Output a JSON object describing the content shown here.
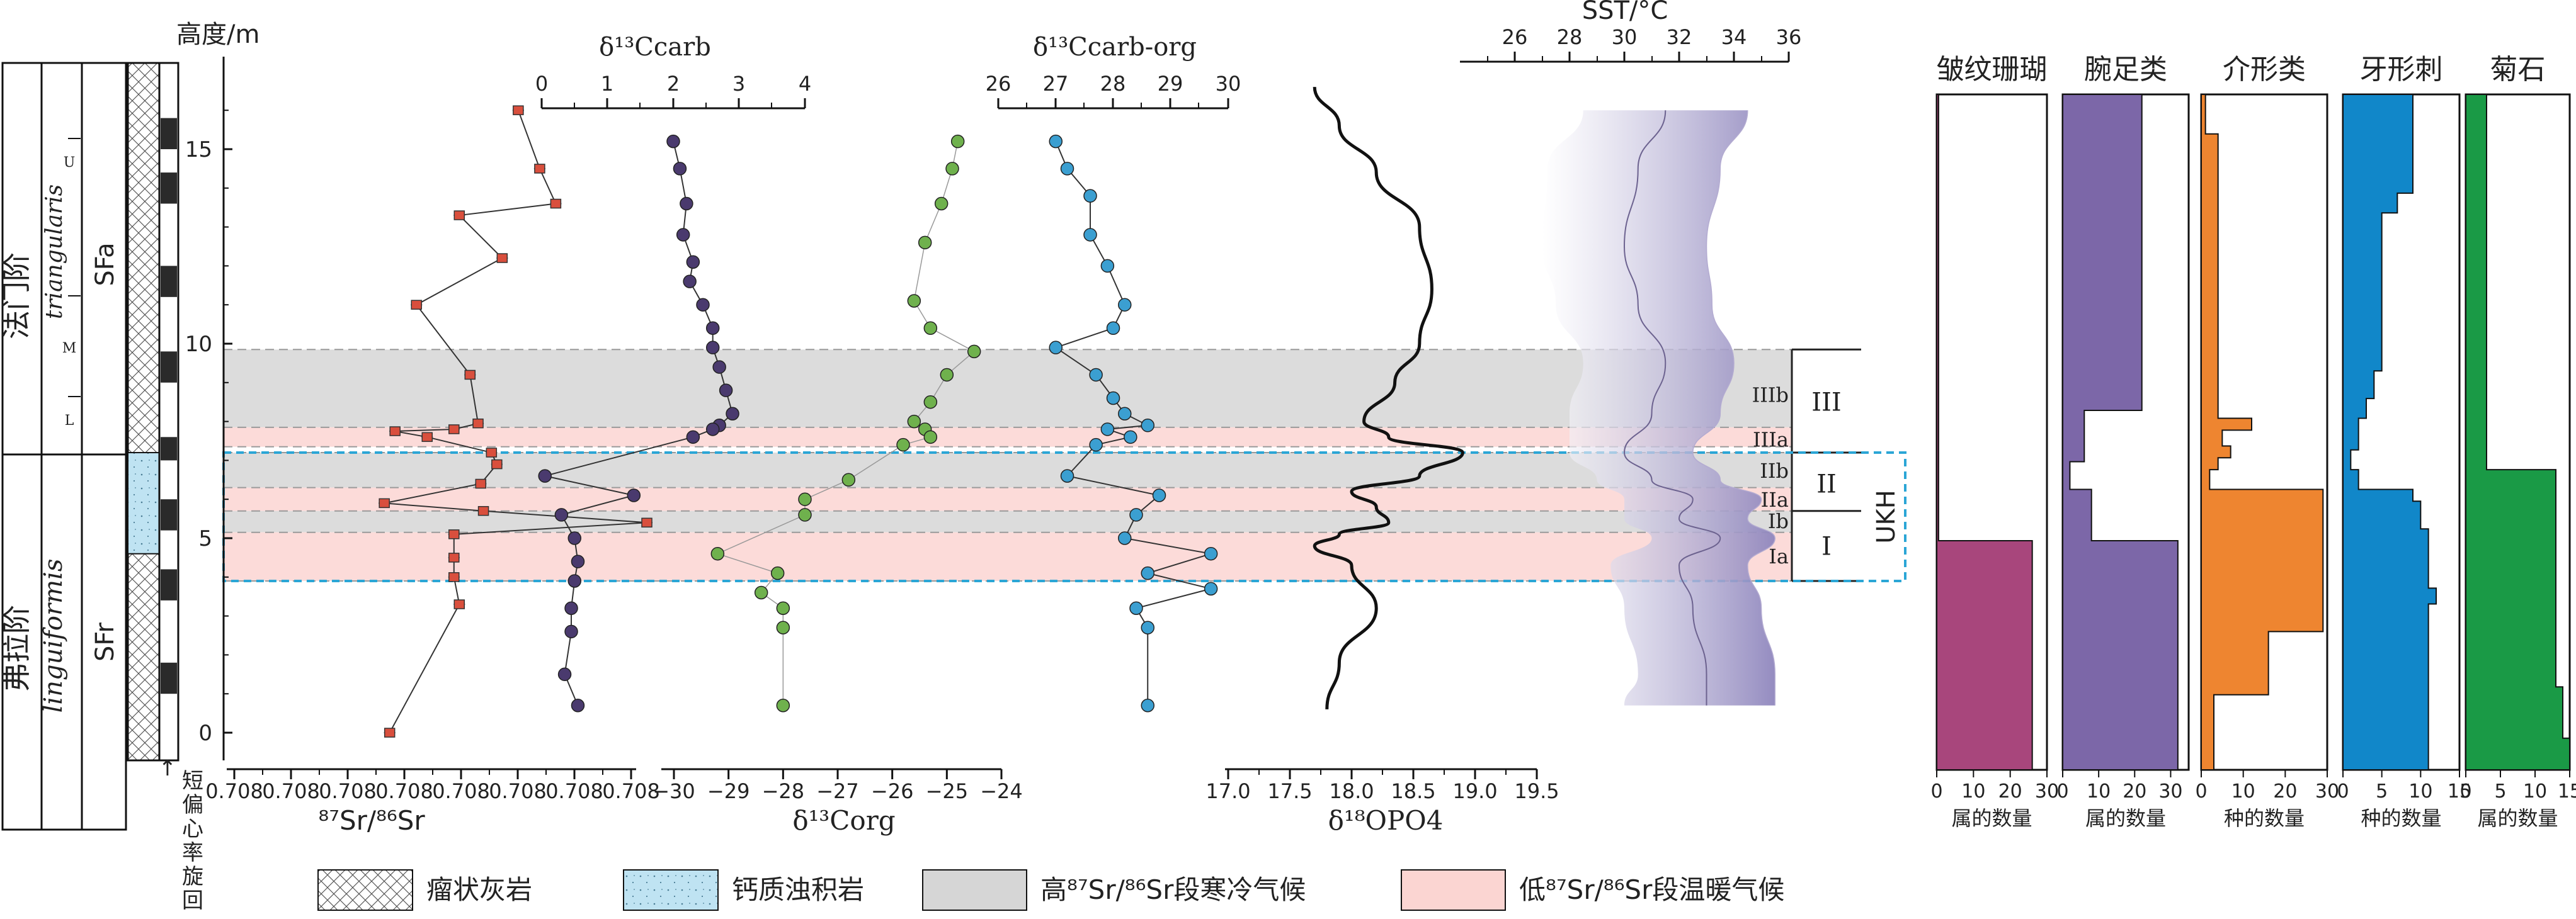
{
  "figure": {
    "height_axis_label": "高度/m",
    "height_ticks": [
      "0",
      "5",
      "10",
      "15"
    ],
    "stages": [
      "法门阶",
      "弗拉阶"
    ],
    "zones": [
      "triangularis",
      "linguiformis"
    ],
    "subzones": [
      "U",
      "M",
      "L"
    ],
    "sequences": [
      "SFa",
      "SFr"
    ],
    "cycle_label": "短偏心率旋回",
    "cycle_arrow": "↑",
    "intervals": [
      "IIIb",
      "IIIa",
      "IIb",
      "IIa",
      "Ib",
      "Ia"
    ],
    "groups": [
      "III",
      "II",
      "I"
    ],
    "ukh_label": "UKH"
  },
  "legend": {
    "items": [
      {
        "key": "nodular",
        "label": "瘤状灰岩"
      },
      {
        "key": "turbidite",
        "label": "钙质浊积岩"
      },
      {
        "key": "cold",
        "label": "高⁸⁷Sr/⁸⁶Sr段寒冷气候"
      },
      {
        "key": "warm",
        "label": "低⁸⁷Sr/⁸⁶Sr段温暖气候"
      }
    ]
  },
  "colors": {
    "sr": "#d94f3d",
    "carb": "#4a3a6e",
    "org": "#6fb14d",
    "carborg": "#3b9fd1",
    "sst_band": "#a89ccb",
    "cold": "#d6d6d6",
    "warm": "#fbd5d2",
    "ukh": "#2ba6d6",
    "coral": "#a8467c",
    "brach": "#7c67a8",
    "ostracod": "#ee8530",
    "conodont": "#1187c9",
    "ammonoid": "#1a9a46"
  },
  "chart_data": [
    {
      "type": "scatter",
      "panel": "sr",
      "xlabel": "⁸⁷Sr/⁸⁶Sr",
      "ylabel": "高度/m",
      "xlim": [
        0.7079,
        0.7082
      ],
      "ylim": [
        -1,
        16.5
      ],
      "x_ticks": [
        "0.708",
        "0.708",
        "0.708",
        "0.708",
        "0.708",
        "0.708",
        "0.708",
        "0.708"
      ],
      "points": [
        {
          "y": 16.0,
          "x": 0.708112
        },
        {
          "y": 14.5,
          "x": 0.708128
        },
        {
          "y": 13.6,
          "x": 0.70814
        },
        {
          "y": 13.3,
          "x": 0.708068
        },
        {
          "y": 12.2,
          "x": 0.7081
        },
        {
          "y": 11.0,
          "x": 0.708036
        },
        {
          "y": 9.2,
          "x": 0.708076
        },
        {
          "y": 7.95,
          "x": 0.708082
        },
        {
          "y": 7.8,
          "x": 0.708064
        },
        {
          "y": 7.75,
          "x": 0.70802
        },
        {
          "y": 7.6,
          "x": 0.708044
        },
        {
          "y": 7.2,
          "x": 0.708092
        },
        {
          "y": 6.9,
          "x": 0.708096
        },
        {
          "y": 6.4,
          "x": 0.708084
        },
        {
          "y": 5.9,
          "x": 0.708012
        },
        {
          "y": 5.7,
          "x": 0.708086
        },
        {
          "y": 5.4,
          "x": 0.708208
        },
        {
          "y": 5.1,
          "x": 0.708064
        },
        {
          "y": 4.5,
          "x": 0.708064
        },
        {
          "y": 4.0,
          "x": 0.708064
        },
        {
          "y": 3.3,
          "x": 0.708068
        },
        {
          "y": 0.0,
          "x": 0.708016
        }
      ]
    },
    {
      "type": "scatter",
      "panel": "d13C_carb",
      "title": "δ¹³Ccarb",
      "xlim": [
        0,
        4
      ],
      "x_ticks": [
        "0",
        "1",
        "2",
        "3",
        "4"
      ],
      "points": [
        {
          "y": 15.2,
          "x": 2.0
        },
        {
          "y": 14.5,
          "x": 2.1
        },
        {
          "y": 13.6,
          "x": 2.2
        },
        {
          "y": 12.8,
          "x": 2.15
        },
        {
          "y": 12.1,
          "x": 2.3
        },
        {
          "y": 11.6,
          "x": 2.25
        },
        {
          "y": 11.0,
          "x": 2.45
        },
        {
          "y": 10.4,
          "x": 2.6
        },
        {
          "y": 9.9,
          "x": 2.6
        },
        {
          "y": 9.4,
          "x": 2.7
        },
        {
          "y": 8.8,
          "x": 2.8
        },
        {
          "y": 8.2,
          "x": 2.9
        },
        {
          "y": 7.9,
          "x": 2.7
        },
        {
          "y": 7.8,
          "x": 2.6
        },
        {
          "y": 7.6,
          "x": 2.3
        },
        {
          "y": 6.6,
          "x": 0.05
        },
        {
          "y": 6.1,
          "x": 1.4
        },
        {
          "y": 5.6,
          "x": 0.3
        },
        {
          "y": 5.0,
          "x": 0.5
        },
        {
          "y": 4.4,
          "x": 0.55
        },
        {
          "y": 3.9,
          "x": 0.5
        },
        {
          "y": 3.2,
          "x": 0.45
        },
        {
          "y": 2.6,
          "x": 0.45
        },
        {
          "y": 1.5,
          "x": 0.35
        },
        {
          "y": 0.7,
          "x": 0.55
        }
      ]
    },
    {
      "type": "scatter",
      "panel": "d13C_org",
      "xlabel": "δ¹³Corg",
      "xlim": [
        -30,
        -24
      ],
      "x_ticks": [
        "−30",
        "−29",
        "−28",
        "−27",
        "−26",
        "−25",
        "−24"
      ],
      "points": [
        {
          "y": 15.2,
          "x": -24.8
        },
        {
          "y": 14.5,
          "x": -24.9
        },
        {
          "y": 13.6,
          "x": -25.1
        },
        {
          "y": 12.6,
          "x": -25.4
        },
        {
          "y": 11.1,
          "x": -25.6
        },
        {
          "y": 10.4,
          "x": -25.3
        },
        {
          "y": 9.8,
          "x": -24.5
        },
        {
          "y": 9.2,
          "x": -25.0
        },
        {
          "y": 8.5,
          "x": -25.3
        },
        {
          "y": 8.0,
          "x": -25.6
        },
        {
          "y": 7.8,
          "x": -25.4
        },
        {
          "y": 7.6,
          "x": -25.3
        },
        {
          "y": 7.4,
          "x": -25.8
        },
        {
          "y": 6.5,
          "x": -26.8
        },
        {
          "y": 6.0,
          "x": -27.6
        },
        {
          "y": 5.6,
          "x": -27.6
        },
        {
          "y": 4.6,
          "x": -29.2
        },
        {
          "y": 4.1,
          "x": -28.1
        },
        {
          "y": 3.6,
          "x": -28.4
        },
        {
          "y": 3.2,
          "x": -28.0
        },
        {
          "y": 2.7,
          "x": -28.0
        },
        {
          "y": 0.7,
          "x": -28.0
        }
      ]
    },
    {
      "type": "scatter",
      "panel": "d13C_carborg",
      "title": "δ¹³Ccarb-org",
      "xlim": [
        26,
        30
      ],
      "x_ticks": [
        "26",
        "27",
        "28",
        "29",
        "30"
      ],
      "points": [
        {
          "y": 15.2,
          "x": 27.0
        },
        {
          "y": 14.5,
          "x": 27.2
        },
        {
          "y": 13.8,
          "x": 27.6
        },
        {
          "y": 12.8,
          "x": 27.6
        },
        {
          "y": 12.0,
          "x": 27.9
        },
        {
          "y": 11.0,
          "x": 28.2
        },
        {
          "y": 10.4,
          "x": 28.0
        },
        {
          "y": 9.9,
          "x": 27.0
        },
        {
          "y": 9.2,
          "x": 27.7
        },
        {
          "y": 8.6,
          "x": 28.0
        },
        {
          "y": 8.2,
          "x": 28.2
        },
        {
          "y": 7.9,
          "x": 28.6
        },
        {
          "y": 7.8,
          "x": 27.9
        },
        {
          "y": 7.6,
          "x": 28.3
        },
        {
          "y": 7.4,
          "x": 27.7
        },
        {
          "y": 6.6,
          "x": 27.2
        },
        {
          "y": 6.1,
          "x": 28.8
        },
        {
          "y": 5.6,
          "x": 28.4
        },
        {
          "y": 5.0,
          "x": 28.2
        },
        {
          "y": 4.6,
          "x": 29.7
        },
        {
          "y": 4.1,
          "x": 28.6
        },
        {
          "y": 3.7,
          "x": 29.7
        },
        {
          "y": 3.2,
          "x": 28.4
        },
        {
          "y": 2.7,
          "x": 28.6
        },
        {
          "y": 0.7,
          "x": 28.6
        }
      ]
    },
    {
      "type": "line",
      "panel": "d18O",
      "xlabel": "δ¹⁸OPO4",
      "xlim": [
        17.0,
        19.5
      ],
      "x_ticks": [
        "17.0",
        "17.5",
        "18.0",
        "18.5",
        "19.0",
        "19.5"
      ],
      "points": [
        {
          "y": 16.6,
          "x": 17.7
        },
        {
          "y": 15.6,
          "x": 17.9
        },
        {
          "y": 14.4,
          "x": 18.2
        },
        {
          "y": 13.0,
          "x": 18.55
        },
        {
          "y": 11.4,
          "x": 18.65
        },
        {
          "y": 10.0,
          "x": 18.55
        },
        {
          "y": 9.0,
          "x": 18.35
        },
        {
          "y": 8.0,
          "x": 18.1
        },
        {
          "y": 7.6,
          "x": 18.3
        },
        {
          "y": 7.2,
          "x": 18.9
        },
        {
          "y": 6.6,
          "x": 18.55
        },
        {
          "y": 6.2,
          "x": 18.0
        },
        {
          "y": 5.8,
          "x": 18.2
        },
        {
          "y": 5.4,
          "x": 18.3
        },
        {
          "y": 5.1,
          "x": 17.9
        },
        {
          "y": 4.8,
          "x": 17.7
        },
        {
          "y": 4.3,
          "x": 18.0
        },
        {
          "y": 3.2,
          "x": 18.2
        },
        {
          "y": 1.8,
          "x": 17.9
        },
        {
          "y": 0.6,
          "x": 17.8
        }
      ]
    },
    {
      "type": "area",
      "panel": "sst",
      "title": "SST/°C",
      "xlim": [
        24,
        36
      ],
      "x_ticks": [
        "26",
        "28",
        "30",
        "32",
        "34",
        "36"
      ],
      "points": [
        {
          "y": 16.0,
          "low": 28.5,
          "mid": 31.5,
          "high": 34.5
        },
        {
          "y": 14.5,
          "low": 27.2,
          "mid": 30.5,
          "high": 33.5
        },
        {
          "y": 12.5,
          "low": 27.0,
          "mid": 30.0,
          "high": 33.0
        },
        {
          "y": 11.0,
          "low": 27.5,
          "mid": 30.5,
          "high": 33.2
        },
        {
          "y": 9.5,
          "low": 28.5,
          "mid": 31.5,
          "high": 34.0
        },
        {
          "y": 8.2,
          "low": 28.0,
          "mid": 31.0,
          "high": 33.5
        },
        {
          "y": 7.2,
          "low": 28.0,
          "mid": 30.0,
          "high": 32.5
        },
        {
          "y": 6.5,
          "low": 29.0,
          "mid": 31.0,
          "high": 33.5
        },
        {
          "y": 6.0,
          "low": 30.0,
          "mid": 32.5,
          "high": 35.0
        },
        {
          "y": 5.5,
          "low": 30.0,
          "mid": 32.0,
          "high": 34.5
        },
        {
          "y": 5.0,
          "low": 31.0,
          "mid": 33.5,
          "high": 35.5
        },
        {
          "y": 4.3,
          "low": 29.5,
          "mid": 32.0,
          "high": 34.5
        },
        {
          "y": 3.2,
          "low": 30.0,
          "mid": 32.5,
          "high": 35.0
        },
        {
          "y": 1.5,
          "low": 30.5,
          "mid": 33.0,
          "high": 35.5
        },
        {
          "y": 0.7,
          "low": 30.0,
          "mid": 33.0,
          "high": 35.5
        }
      ]
    },
    {
      "type": "bar",
      "panel": "coral",
      "title": "皱纹珊瑚",
      "xlabel": "属的数量",
      "xlim": [
        0,
        30
      ],
      "x_ticks": [
        "0",
        "10",
        "20",
        "30"
      ],
      "steps": [
        {
          "from": 16.5,
          "to": 5.2,
          "value": 0.5
        },
        {
          "from": 5.2,
          "to": -0.6,
          "value": 26
        }
      ]
    },
    {
      "type": "bar",
      "panel": "brachiopod",
      "title": "腕足类",
      "xlabel": "属的数量",
      "xlim": [
        0,
        35
      ],
      "x_ticks": [
        "0",
        "10",
        "20",
        "30"
      ],
      "steps": [
        {
          "from": 16.5,
          "to": 8.5,
          "value": 22
        },
        {
          "from": 8.5,
          "to": 7.2,
          "value": 6
        },
        {
          "from": 7.2,
          "to": 6.5,
          "value": 2
        },
        {
          "from": 6.5,
          "to": 5.2,
          "value": 8
        },
        {
          "from": 5.2,
          "to": -0.6,
          "value": 32
        }
      ]
    },
    {
      "type": "bar",
      "panel": "ostracod",
      "title": "介形类",
      "xlabel": "种的数量",
      "xlim": [
        0,
        30
      ],
      "x_ticks": [
        "0",
        "10",
        "20",
        "30"
      ],
      "steps": [
        {
          "from": 16.5,
          "to": 15.5,
          "value": 1
        },
        {
          "from": 15.5,
          "to": 8.3,
          "value": 4
        },
        {
          "from": 8.3,
          "to": 8.0,
          "value": 12
        },
        {
          "from": 8.0,
          "to": 7.6,
          "value": 5
        },
        {
          "from": 7.6,
          "to": 7.3,
          "value": 7
        },
        {
          "from": 7.3,
          "to": 7.0,
          "value": 4
        },
        {
          "from": 7.0,
          "to": 6.5,
          "value": 2
        },
        {
          "from": 6.5,
          "to": 2.9,
          "value": 29
        },
        {
          "from": 2.9,
          "to": 1.3,
          "value": 16
        },
        {
          "from": 1.3,
          "to": -0.6,
          "value": 3
        }
      ]
    },
    {
      "type": "bar",
      "panel": "conodont",
      "title": "牙形刺",
      "xlabel": "种的数量",
      "xlim": [
        0,
        15
      ],
      "x_ticks": [
        "0",
        "5",
        "10",
        "15"
      ],
      "steps": [
        {
          "from": 16.5,
          "to": 14.0,
          "value": 9
        },
        {
          "from": 14.0,
          "to": 13.5,
          "value": 7
        },
        {
          "from": 13.5,
          "to": 9.5,
          "value": 5
        },
        {
          "from": 9.5,
          "to": 8.8,
          "value": 4
        },
        {
          "from": 8.8,
          "to": 8.3,
          "value": 3
        },
        {
          "from": 8.3,
          "to": 7.5,
          "value": 2
        },
        {
          "from": 7.5,
          "to": 7.0,
          "value": 1
        },
        {
          "from": 7.0,
          "to": 6.5,
          "value": 2
        },
        {
          "from": 6.5,
          "to": 6.2,
          "value": 9
        },
        {
          "from": 6.2,
          "to": 5.5,
          "value": 10
        },
        {
          "from": 5.5,
          "to": 4.0,
          "value": 11
        },
        {
          "from": 4.0,
          "to": 3.6,
          "value": 12
        },
        {
          "from": 3.6,
          "to": -0.6,
          "value": 11
        }
      ]
    },
    {
      "type": "bar",
      "panel": "ammonoid",
      "title": "菊石",
      "xlabel": "属的数量",
      "xlim": [
        0,
        15
      ],
      "x_ticks": [
        "0",
        "5",
        "10",
        "15"
      ],
      "steps": [
        {
          "from": 16.5,
          "to": 7.0,
          "value": 3
        },
        {
          "from": 7.0,
          "to": 1.5,
          "value": 13
        },
        {
          "from": 1.5,
          "to": 0.2,
          "value": 14
        },
        {
          "from": 0.2,
          "to": -0.6,
          "value": 15
        }
      ]
    }
  ]
}
